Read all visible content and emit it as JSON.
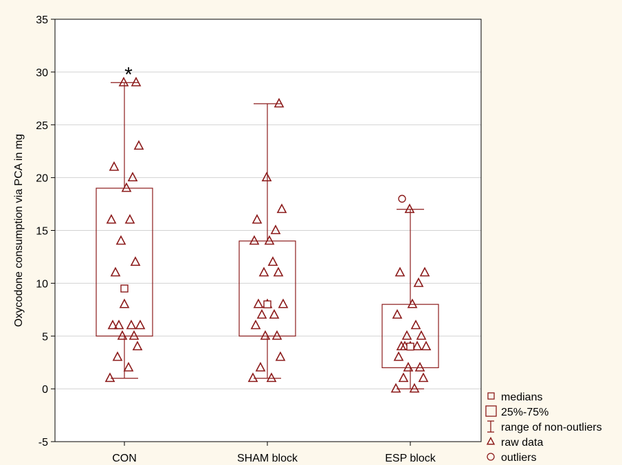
{
  "chart_data": {
    "type": "box",
    "title": "",
    "xlabel": "",
    "ylabel": "Oxycodone consumption via PCA in mg",
    "ylim": [
      -5,
      35
    ],
    "yticks": [
      -5,
      0,
      5,
      10,
      15,
      20,
      25,
      30,
      35
    ],
    "grid": true,
    "legend_position": "bottom-right, outside plot",
    "color": "#8b1a1a",
    "categories": [
      "CON",
      "SHAM block",
      "ESP block"
    ],
    "boxes": [
      {
        "category": "CON",
        "median": 9.5,
        "q1": 5,
        "q3": 19,
        "whisker_low": 1,
        "whisker_high": 29,
        "outliers": [],
        "annotation": "*",
        "raw": [
          1,
          2,
          3,
          4,
          5,
          5,
          6,
          6,
          6,
          6,
          8,
          11,
          12,
          14,
          16,
          16,
          19,
          20,
          21,
          23,
          29,
          29
        ]
      },
      {
        "category": "SHAM block",
        "median": 8,
        "q1": 5,
        "q3": 14,
        "whisker_low": 1,
        "whisker_high": 27,
        "outliers": [],
        "annotation": "",
        "raw": [
          1,
          1,
          2,
          3,
          5,
          5,
          6,
          7,
          7,
          8,
          8,
          8,
          11,
          11,
          12,
          14,
          14,
          15,
          16,
          17,
          20,
          27
        ]
      },
      {
        "category": "ESP block",
        "median": 4,
        "q1": 2,
        "q3": 8,
        "whisker_low": 0,
        "whisker_high": 17,
        "outliers": [
          18
        ],
        "annotation": "",
        "raw": [
          0,
          0,
          1,
          1,
          2,
          2,
          3,
          4,
          4,
          4,
          4,
          4,
          5,
          5,
          6,
          7,
          8,
          10,
          11,
          11,
          17
        ]
      }
    ],
    "legend": [
      {
        "symbol": "median-square",
        "label": "medians"
      },
      {
        "symbol": "box",
        "label": "25%-75%"
      },
      {
        "symbol": "whisker",
        "label": "range of non-outliers"
      },
      {
        "symbol": "triangle",
        "label": "raw data"
      },
      {
        "symbol": "circle",
        "label": "outliers"
      }
    ]
  }
}
